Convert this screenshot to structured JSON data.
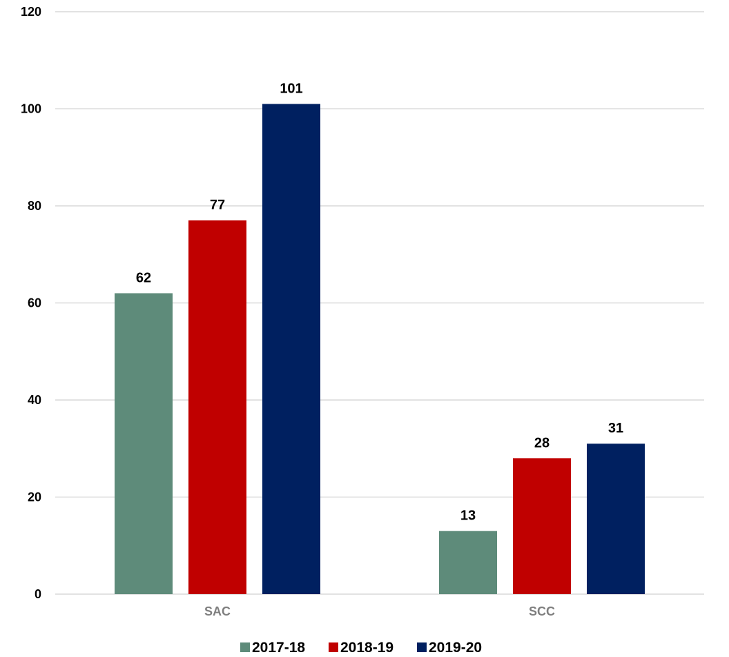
{
  "chart_data": {
    "type": "bar",
    "categories": [
      "SAC",
      "SCC"
    ],
    "series": [
      {
        "name": "2017-18",
        "values": [
          62,
          13
        ],
        "color": "#5e8b7a"
      },
      {
        "name": "2018-19",
        "values": [
          77,
          28
        ],
        "color": "#c00000"
      },
      {
        "name": "2019-20",
        "values": [
          101,
          31
        ],
        "color": "#002060"
      }
    ],
    "yticks": [
      0,
      20,
      40,
      60,
      80,
      100,
      120
    ],
    "ylim": [
      0,
      120
    ],
    "grid": true,
    "gridline_color": "#d9d9d9",
    "legend_position": "bottom",
    "data_labels": true,
    "title": "",
    "xlabel": "",
    "ylabel": ""
  }
}
